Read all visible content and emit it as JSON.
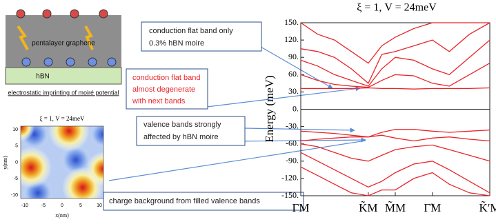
{
  "chart_data": {
    "type": "line",
    "title": "ξ = 1, V = 24meV",
    "y_label": "Energy (meV)",
    "x": [
      0,
      0.25,
      0.5,
      0.75,
      1,
      1.2,
      1.4,
      1.675,
      1.95,
      2.2,
      2.5,
      2.8
    ],
    "xlim": [
      0,
      2.8
    ],
    "xticks": [
      {
        "value": 0,
        "label": "ΓM"
      },
      {
        "value": 1,
        "label": "K̃M"
      },
      {
        "value": 1.4,
        "label": "M̃M"
      },
      {
        "value": 1.95,
        "label": "Γ̃M"
      },
      {
        "value": 2.8,
        "label": "K̃′M"
      }
    ],
    "ylim": [
      -150,
      150
    ],
    "yticks": [
      {
        "value": 150,
        "label": "150."
      },
      {
        "value": 120,
        "label": "120."
      },
      {
        "value": 90,
        "label": "90."
      },
      {
        "value": 60,
        "label": "60."
      },
      {
        "value": 30,
        "label": "30."
      },
      {
        "value": 0,
        "label": "0."
      },
      {
        "value": -30,
        "label": "-30."
      },
      {
        "value": -60,
        "label": "-60."
      },
      {
        "value": -90,
        "label": "-90."
      },
      {
        "value": -120,
        "label": "-120."
      },
      {
        "value": -150,
        "label": "-150."
      }
    ],
    "series": [
      {
        "color": "#e8252a",
        "values": [
          36,
          36,
          36,
          36,
          37,
          36,
          36,
          35,
          36,
          36,
          36,
          37
        ]
      },
      {
        "color": "#e8252a",
        "values": [
          60,
          50,
          43,
          40,
          38,
          50,
          60,
          58,
          45,
          40,
          60,
          80
        ]
      },
      {
        "color": "#e8252a",
        "values": [
          85,
          75,
          60,
          50,
          40,
          70,
          90,
          85,
          70,
          60,
          90,
          120
        ]
      },
      {
        "color": "#e8252a",
        "values": [
          105,
          100,
          90,
          70,
          45,
          95,
          100,
          110,
          120,
          100,
          130,
          150
        ]
      },
      {
        "color": "#e8252a",
        "values": [
          150,
          130,
          120,
          100,
          80,
          110,
          125,
          140,
          150,
          150,
          150,
          150
        ]
      },
      {
        "color": "#e8252a",
        "values": [
          -38,
          -40,
          -42,
          -45,
          -48,
          -40,
          -35,
          -35,
          -38,
          -40,
          -38,
          -36
        ]
      },
      {
        "color": "#e8252a",
        "values": [
          -55,
          -52,
          -50,
          -48,
          -48,
          -45,
          -50,
          -55,
          -50,
          -48,
          -52,
          -55
        ]
      },
      {
        "color": "#e8252a",
        "values": [
          -60,
          -65,
          -75,
          -85,
          -90,
          -80,
          -70,
          -65,
          -62,
          -70,
          -80,
          -90
        ]
      },
      {
        "color": "#e8252a",
        "values": [
          -75,
          -90,
          -105,
          -120,
          -135,
          -125,
          -110,
          -95,
          -90,
          -105,
          -125,
          -145
        ]
      },
      {
        "color": "#e8252a",
        "values": [
          -100,
          -115,
          -130,
          -145,
          -150,
          -140,
          -140,
          -120,
          -110,
          -130,
          -145,
          -150
        ]
      }
    ]
  },
  "schematic": {
    "layer_label": "pentalayer graphene",
    "substrate_label": "hBN",
    "caption": "electrostatic imprinting of moiré potential"
  },
  "inset": {
    "title": "ξ = 1, V = 24meV",
    "x_label": "x(nm)",
    "y_label": "y(nm)",
    "yticks": [
      "10",
      "5",
      "0",
      "-5",
      "-10"
    ],
    "xticks": [
      "-10",
      "-5",
      "0",
      "5",
      "10"
    ]
  },
  "annotations": [
    {
      "lines": [
        "conduction flat band only",
        "0.3% hBN moire"
      ]
    },
    {
      "lines": [
        "conduction flat band",
        "almost degenerate",
        "with next bands"
      ]
    },
    {
      "lines": [
        "valence bands strongly",
        "affected by hBN moire"
      ]
    },
    {
      "lines": [
        "charge background from filled valence bands"
      ]
    }
  ]
}
